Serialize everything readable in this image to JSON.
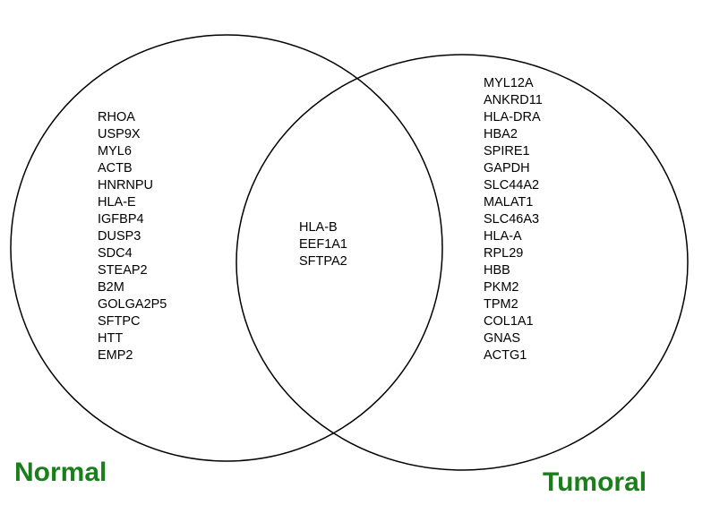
{
  "sets": {
    "normal": {
      "label": "Normal",
      "genes": [
        "RHOA",
        "USP9X",
        "MYL6",
        "ACTB",
        "HNRNPU",
        "HLA-E",
        "IGFBP4",
        "DUSP3",
        "SDC4",
        "STEAP2",
        "B2M",
        "GOLGA2P5",
        "SFTPC",
        "HTT",
        "EMP2"
      ]
    },
    "tumoral": {
      "label": "Tumoral",
      "genes": [
        "MYL12A",
        "ANKRD11",
        "HLA-DRA",
        "HBA2",
        "SPIRE1",
        "GAPDH",
        "SLC44A2",
        "MALAT1",
        "SLC46A3",
        "HLA-A",
        "RPL29",
        "HBB",
        "PKM2",
        "TPM2",
        "COL1A1",
        "GNAS",
        "ACTG1"
      ]
    }
  },
  "intersection": {
    "genes": [
      "HLA-B",
      "EEF1A1",
      "SFTPA2"
    ]
  },
  "colors": {
    "label": "#1a7f1a",
    "circle_stroke": "#000000",
    "text": "#000000"
  }
}
